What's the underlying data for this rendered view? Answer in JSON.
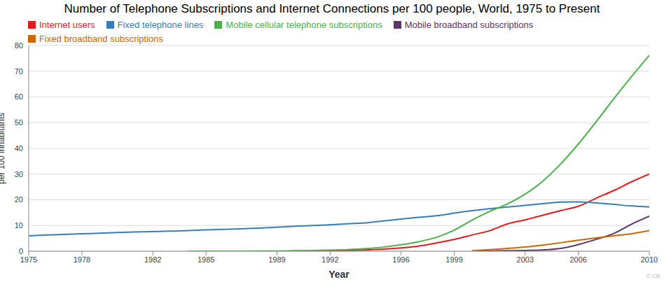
{
  "chart_data": {
    "type": "line",
    "title": "Number of Telephone Subscriptions and Internet Connections per 100 people, World, 1975 to Present",
    "x_label": "Year",
    "y_label": "per 100 inhabitants",
    "annotations": [
      "© CB"
    ],
    "x": [
      1975,
      1976,
      1977,
      1978,
      1979,
      1980,
      1981,
      1982,
      1983,
      1984,
      1985,
      1986,
      1987,
      1988,
      1989,
      1990,
      1991,
      1992,
      1993,
      1994,
      1995,
      1996,
      1997,
      1998,
      1999,
      2000,
      2001,
      2002,
      2003,
      2004,
      2005,
      2006,
      2007,
      2008,
      2009,
      2010
    ],
    "xlim": [
      1975,
      2010
    ],
    "xticks": [
      1975,
      1978,
      1982,
      1985,
      1989,
      1992,
      1996,
      1999,
      2003,
      2006,
      2010
    ],
    "ylim": [
      0,
      80
    ],
    "yticks": [
      0,
      10,
      20,
      30,
      40,
      50,
      60,
      70,
      80
    ],
    "grid": true,
    "legend": "top-left",
    "series": [
      {
        "name": "Internet users",
        "color": "#e41a1c",
        "values": [
          null,
          null,
          null,
          null,
          null,
          null,
          null,
          null,
          null,
          null,
          null,
          null,
          null,
          null,
          null,
          0.05,
          0.08,
          0.2,
          0.3,
          0.5,
          0.8,
          1.3,
          2.0,
          3.2,
          4.6,
          6.3,
          8.0,
          10.6,
          12.2,
          14.0,
          15.8,
          17.5,
          20.6,
          23.6,
          27.0,
          30.0
        ]
      },
      {
        "name": "Fixed telephone lines",
        "color": "#377eb8",
        "values": [
          6.0,
          6.3,
          6.5,
          6.8,
          7.0,
          7.3,
          7.5,
          7.6,
          7.8,
          8.0,
          8.3,
          8.5,
          8.7,
          9.0,
          9.3,
          9.7,
          10.0,
          10.3,
          10.7,
          11.0,
          11.8,
          12.5,
          13.2,
          13.8,
          14.8,
          15.8,
          16.5,
          17.2,
          17.8,
          18.5,
          19.1,
          19.2,
          18.8,
          18.2,
          17.6,
          17.2
        ]
      },
      {
        "name": "Mobile cellular telephone subscriptions",
        "color": "#4daf4a",
        "values": [
          null,
          null,
          null,
          null,
          null,
          null,
          null,
          null,
          null,
          0,
          0,
          0.01,
          0.02,
          0.06,
          0.1,
          0.2,
          0.3,
          0.4,
          0.6,
          1.0,
          1.6,
          2.5,
          3.7,
          5.4,
          8.2,
          12.1,
          15.5,
          18.4,
          22.2,
          27.3,
          33.9,
          41.7,
          50.3,
          59.3,
          67.9,
          76.2
        ]
      },
      {
        "name": "Mobile broadband subscriptions",
        "color": "#5c3566",
        "values": [
          null,
          null,
          null,
          null,
          null,
          null,
          null,
          null,
          null,
          null,
          null,
          null,
          null,
          null,
          null,
          null,
          null,
          null,
          null,
          null,
          null,
          null,
          null,
          null,
          null,
          0,
          0.1,
          0.2,
          0.3,
          0.5,
          1.1,
          2.6,
          4.6,
          6.9,
          10.5,
          13.6
        ]
      },
      {
        "name": "Fixed broadband subscriptions",
        "color": "#cc6600",
        "values": [
          null,
          null,
          null,
          null,
          null,
          null,
          null,
          null,
          null,
          null,
          null,
          null,
          null,
          null,
          null,
          null,
          null,
          null,
          null,
          null,
          null,
          null,
          null,
          null,
          null,
          0.2,
          0.6,
          1.1,
          1.6,
          2.4,
          3.3,
          4.3,
          5.2,
          6.0,
          6.8,
          8.0
        ]
      }
    ]
  }
}
